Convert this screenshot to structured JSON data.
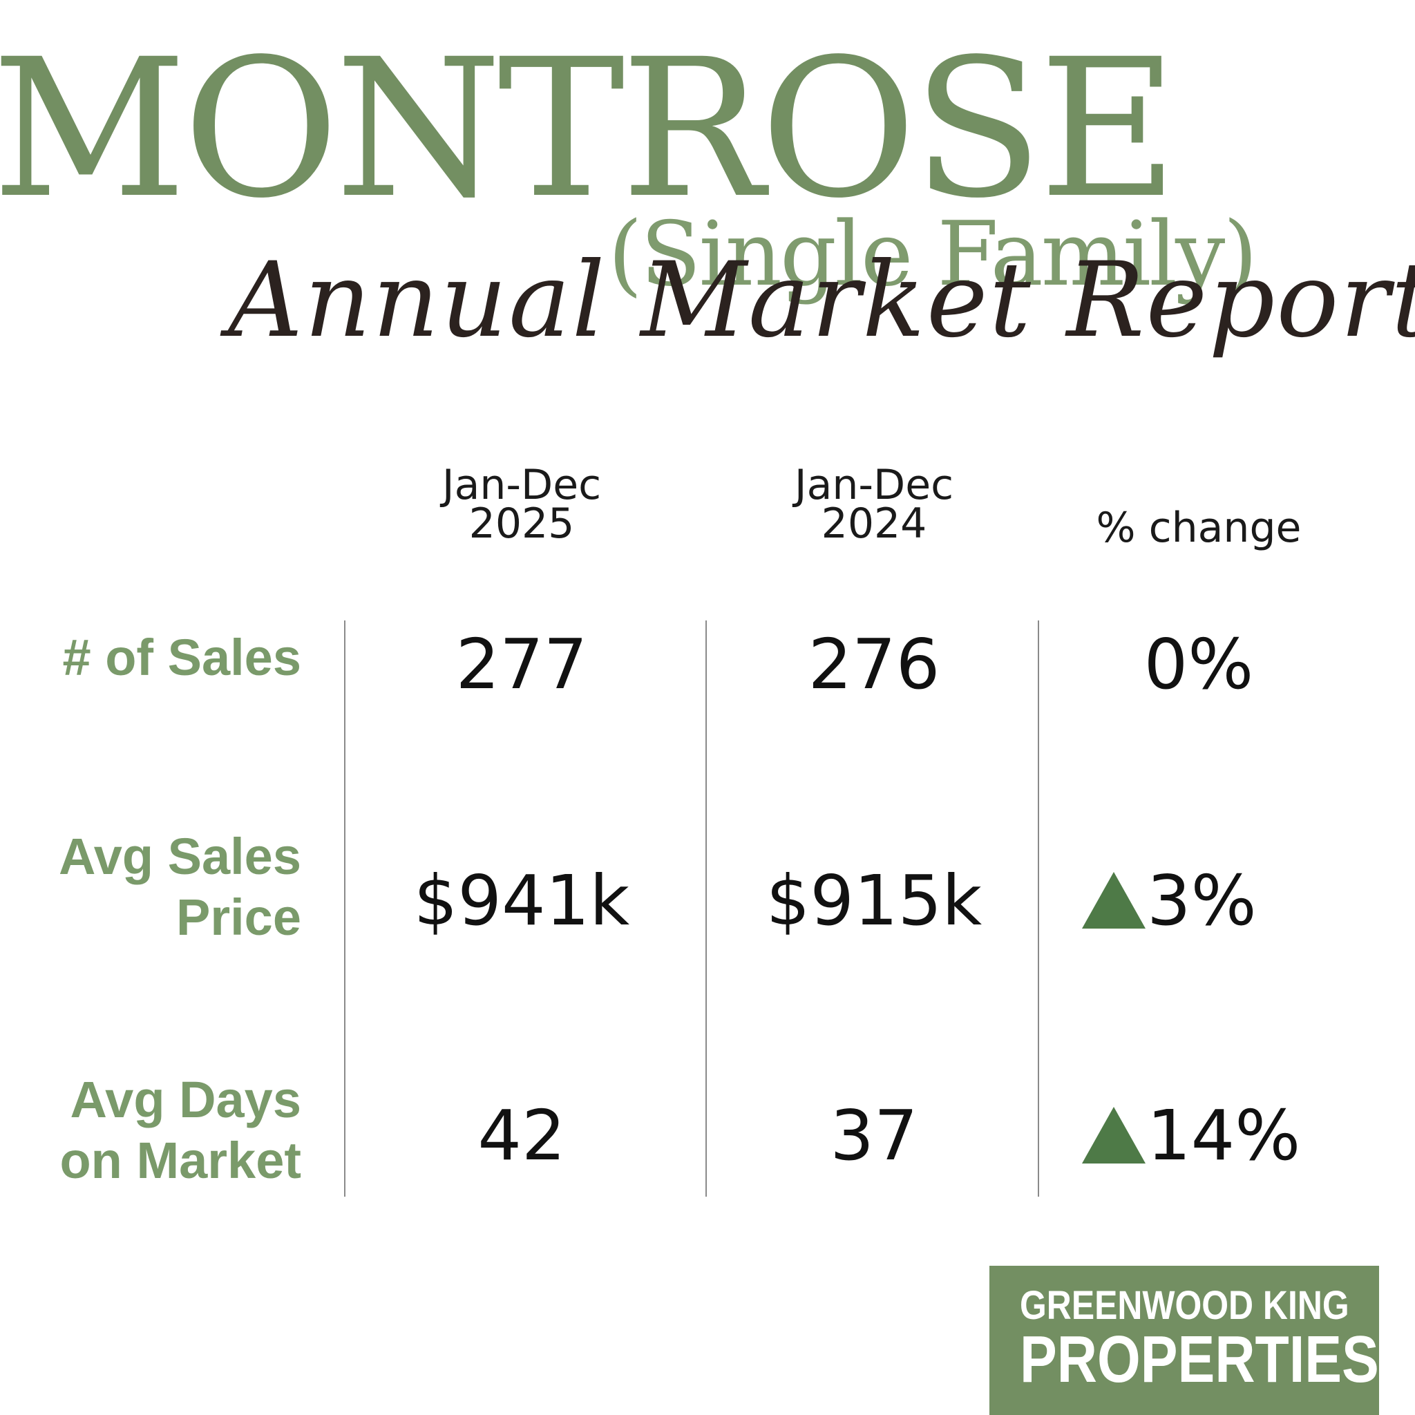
{
  "header": {
    "title": "MONTROSE",
    "subtitle": "(Single Family)",
    "script_title": "Annual Market Report"
  },
  "table": {
    "columns": [
      {
        "line1": "Jan-Dec",
        "line2": "2025"
      },
      {
        "line1": "Jan-Dec",
        "line2": "2024"
      },
      {
        "line1": "",
        "line2": "% change"
      }
    ],
    "rows": [
      {
        "label_line1": "# of Sales",
        "label_line2": "",
        "v2025": "277",
        "v2024": "276",
        "change": "0%",
        "change_trend": "none"
      },
      {
        "label_line1": "Avg Sales",
        "label_line2": "Price",
        "v2025": "$941k",
        "v2024": "$915k",
        "change": "3%",
        "change_trend": "up"
      },
      {
        "label_line1": "Avg Days",
        "label_line2": "on Market",
        "v2025": "42",
        "v2024": "37",
        "change": "14%",
        "change_trend": "up"
      }
    ]
  },
  "logo": {
    "line1": "GREENWOOD KING",
    "line2": "PROPERTIES"
  },
  "colors": {
    "brand_green": "#738f62",
    "label_green": "#7a9a6a",
    "up_arrow": "#4e7a47",
    "script_ink": "#2b221f"
  }
}
